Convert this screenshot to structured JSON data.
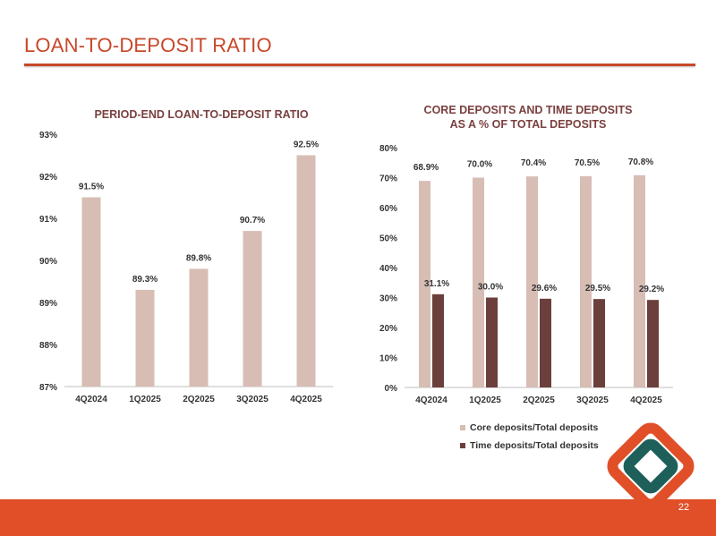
{
  "page": {
    "title": "LOAN-TO-DEPOSIT RATIO",
    "page_number": "22",
    "colors": {
      "accent": "#c8482a",
      "footer": "#e04f27",
      "core_bar": "#d7bdb4",
      "time_bar": "#6b3f3b",
      "text": "#333333"
    }
  },
  "logo": {
    "name": "diamond-logo-icon"
  },
  "chart_data": [
    {
      "type": "bar",
      "title": "PERIOD-END LOAN-TO-DEPOSIT RATIO",
      "categories": [
        "4Q2024",
        "1Q2025",
        "2Q2025",
        "3Q2025",
        "4Q2025"
      ],
      "values": [
        91.5,
        89.3,
        89.8,
        90.7,
        92.5
      ],
      "data_labels": [
        "91.5%",
        "89.3%",
        "89.8%",
        "90.7%",
        "92.5%"
      ],
      "ylim": [
        87,
        93
      ],
      "yticks": [
        87,
        88,
        89,
        90,
        91,
        92,
        93
      ],
      "ytick_labels": [
        "87%",
        "88%",
        "89%",
        "90%",
        "91%",
        "92%",
        "93%"
      ],
      "xlabel": "",
      "ylabel": "",
      "grid": false,
      "legend": "none"
    },
    {
      "type": "bar",
      "title_lines": [
        "CORE DEPOSITS AND TIME DEPOSITS",
        "AS A % OF TOTAL DEPOSITS"
      ],
      "categories": [
        "4Q2024",
        "1Q2025",
        "2Q2025",
        "3Q2025",
        "4Q2025"
      ],
      "series": [
        {
          "name": "Core deposits/Total deposits",
          "values": [
            68.9,
            70.0,
            70.4,
            70.5,
            70.8
          ],
          "labels": [
            "68.9%",
            "70.0%",
            "70.4%",
            "70.5%",
            "70.8%"
          ]
        },
        {
          "name": "Time deposits/Total deposits",
          "values": [
            31.1,
            30.0,
            29.6,
            29.5,
            29.2
          ],
          "labels": [
            "31.1%",
            "30.0%",
            "29.6%",
            "29.5%",
            "29.2%"
          ]
        }
      ],
      "ylim": [
        0,
        80
      ],
      "yticks": [
        0,
        10,
        20,
        30,
        40,
        50,
        60,
        70,
        80
      ],
      "ytick_labels": [
        "0%",
        "10%",
        "20%",
        "30%",
        "40%",
        "50%",
        "60%",
        "70%",
        "80%"
      ],
      "xlabel": "",
      "ylabel": "",
      "grid": false,
      "legend": "bottom"
    }
  ]
}
